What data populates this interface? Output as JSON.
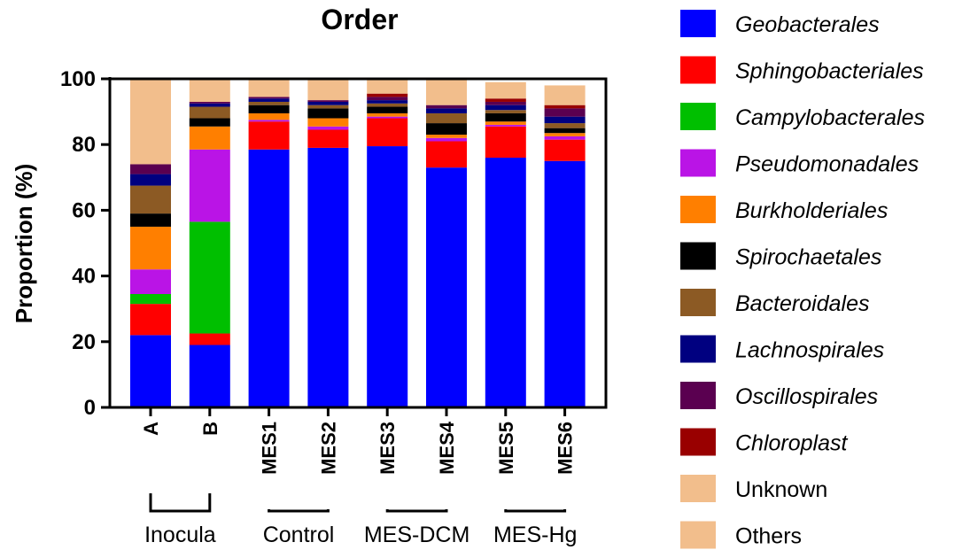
{
  "chart_data": {
    "type": "bar",
    "stacked": true,
    "title": "Order",
    "ylabel": "Proportion (%)",
    "ylim": [
      0,
      100
    ],
    "yticks": [
      "0",
      "20",
      "40",
      "60",
      "80",
      "100"
    ],
    "categories": [
      "A",
      "B",
      "MES1",
      "MES2",
      "MES3",
      "MES4",
      "MES5",
      "MES6"
    ],
    "groups": [
      {
        "label": "Inocula",
        "members": [
          "A",
          "B"
        ]
      },
      {
        "label": "Control",
        "members": [
          "MES1",
          "MES2"
        ]
      },
      {
        "label": "MES-DCM",
        "members": [
          "MES3",
          "MES4"
        ]
      },
      {
        "label": "MES-Hg",
        "members": [
          "MES5",
          "MES6"
        ]
      }
    ],
    "legend_position": "right",
    "series": [
      {
        "name": "Geobacterales",
        "color": "#0000FF",
        "italic": true,
        "values": [
          22,
          19,
          78.5,
          79,
          79.5,
          73,
          76,
          75
        ]
      },
      {
        "name": "Sphingobacteriales",
        "color": "#FF0000",
        "italic": true,
        "values": [
          9.5,
          3.5,
          8.5,
          5.5,
          8.5,
          8,
          9.5,
          6.5
        ]
      },
      {
        "name": "Campylobacterales",
        "color": "#00BF00",
        "italic": true,
        "values": [
          3,
          34,
          0,
          0,
          0,
          0,
          0,
          0
        ]
      },
      {
        "name": "Pseudomonadales",
        "color": "#BA14E6",
        "italic": true,
        "values": [
          7.5,
          22,
          0.5,
          1,
          0.5,
          1,
          0.5,
          1
        ]
      },
      {
        "name": "Burkholderiales",
        "color": "#FF7F00",
        "italic": true,
        "values": [
          13,
          7,
          2,
          2.5,
          1,
          1,
          1,
          1
        ]
      },
      {
        "name": "Spirochaetales",
        "color": "#000000",
        "italic": true,
        "values": [
          4,
          2.5,
          2.5,
          3,
          2,
          3.5,
          2.5,
          1.5
        ]
      },
      {
        "name": "Bacteroidales",
        "color": "#8C5A24",
        "italic": true,
        "values": [
          8.5,
          3.5,
          1,
          1,
          1,
          3,
          1,
          1.5
        ]
      },
      {
        "name": "Lachnospirales",
        "color": "#000080",
        "italic": true,
        "values": [
          3.5,
          1,
          1,
          1,
          1,
          1.5,
          1.5,
          2
        ]
      },
      {
        "name": "Oscillospirales",
        "color": "#5A0050",
        "italic": true,
        "values": [
          3,
          0.5,
          0.5,
          0.5,
          1,
          1,
          1,
          2.5
        ]
      },
      {
        "name": "Chloroplast",
        "color": "#990000",
        "italic": true,
        "values": [
          0,
          0,
          0,
          0,
          1,
          0,
          1,
          1
        ]
      },
      {
        "name": "Unknown",
        "color": "#F2BE8C",
        "italic": false,
        "values": [
          26,
          7,
          5.5,
          6.5,
          4.5,
          8,
          5,
          6
        ]
      },
      {
        "name": "Others",
        "color": "#F2BE8C",
        "italic": false,
        "values": [
          0,
          0,
          0,
          0,
          0,
          0,
          0,
          0
        ]
      }
    ]
  }
}
